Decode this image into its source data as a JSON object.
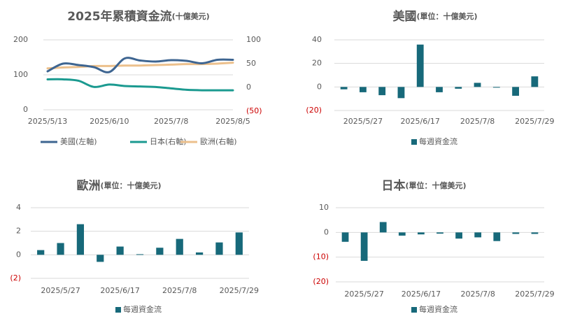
{
  "colors": {
    "us": "#3e6591",
    "jp": "#1b9a90",
    "eu": "#ecc08c",
    "bar": "#17697a",
    "axis_text": "#595959",
    "neg_text": "#cc0000",
    "grid": "#d9d9d9",
    "title": "#595959"
  },
  "chart_data": [
    {
      "id": "chart-cumulative",
      "type": "line",
      "title": "2025年累積資金流",
      "title_unit": "(十億美元)",
      "x": [
        "2025/5/13",
        "2025/5/20",
        "2025/5/27",
        "2025/6/3",
        "2025/6/10",
        "2025/6/17",
        "2025/6/24",
        "2025/7/1",
        "2025/7/8",
        "2025/7/15",
        "2025/7/22",
        "2025/7/29",
        "2025/8/5"
      ],
      "x_tick_labels": [
        "2025/5/13",
        "2025/6/10",
        "2025/7/8",
        "2025/8/5"
      ],
      "y_left_ticks": [
        "200",
        "100",
        "0"
      ],
      "y_right_ticks": [
        "100",
        "50",
        "0",
        "(50)"
      ],
      "y_left_range": [
        0,
        200
      ],
      "y_right_range": [
        -50,
        100
      ],
      "series": [
        {
          "name": "美國(左軸)",
          "axis": "left",
          "color_key": "us",
          "values": [
            110,
            132,
            128,
            122,
            108,
            147,
            141,
            138,
            142,
            140,
            133,
            143,
            143
          ]
        },
        {
          "name": "日本(右軸)",
          "axis": "right",
          "color_key": "jp",
          "values": [
            17,
            17,
            14,
            1,
            6,
            3,
            2,
            1,
            -2,
            -5,
            -6,
            -6,
            -6
          ]
        },
        {
          "name": "歐洲(右軸)",
          "axis": "right",
          "color_key": "eu",
          "values": [
            40,
            42,
            43,
            45,
            45,
            46,
            46,
            47,
            48,
            49,
            49,
            50,
            52
          ]
        }
      ]
    },
    {
      "id": "chart-us",
      "type": "bar",
      "title": "美國",
      "title_unit": "(單位：十億美元)",
      "x_tick_labels": [
        "2025/5/27",
        "2025/6/17",
        "2025/7/8",
        "2025/7/29"
      ],
      "y_ticks": [
        "40",
        "20",
        "0",
        "(20)"
      ],
      "ylim": [
        -20,
        40
      ],
      "legend": "每週資金流",
      "values": [
        -2,
        -4.5,
        -7,
        -9.5,
        36,
        -4.5,
        -1.5,
        3.5,
        -0.5,
        -7.5,
        9
      ]
    },
    {
      "id": "chart-eu",
      "type": "bar",
      "title": "歐洲",
      "title_unit": "(單位：十億美元)",
      "x_tick_labels": [
        "2025/5/27",
        "2025/6/17",
        "2025/7/8",
        "2025/7/29"
      ],
      "y_ticks": [
        "4",
        "2",
        "0",
        "(2)"
      ],
      "ylim": [
        -2,
        4
      ],
      "legend": "每週資金流",
      "values": [
        0.4,
        1.0,
        2.6,
        -0.6,
        0.7,
        0.05,
        0.6,
        1.35,
        0.2,
        1.05,
        1.9
      ]
    },
    {
      "id": "chart-jp",
      "type": "bar",
      "title": "日本",
      "title_unit": "(單位：十億美元)",
      "x_tick_labels": [
        "2025/5/27",
        "2025/6/17",
        "2025/7/8",
        "2025/7/29"
      ],
      "y_ticks": [
        "10",
        "0",
        "(10)",
        "(20)"
      ],
      "ylim": [
        -20,
        10
      ],
      "legend": "每週資金流",
      "values": [
        -3.8,
        -11.5,
        4.2,
        -1.3,
        -0.8,
        -0.5,
        -2.5,
        -2,
        -3.5,
        -0.6,
        -0.6
      ]
    }
  ]
}
